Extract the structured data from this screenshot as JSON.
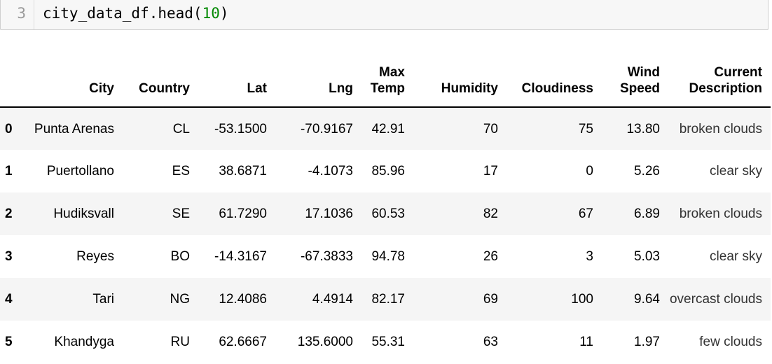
{
  "code_cell": {
    "line_number": "3",
    "code_prefix": "city_data_df.head(",
    "code_number": "10",
    "code_suffix": ")"
  },
  "table": {
    "columns": [
      "",
      "City",
      "Country",
      "Lat",
      "Lng",
      "Max Temp",
      "Humidity",
      "Cloudiness",
      "Wind Speed",
      "Current Description"
    ],
    "rows": [
      {
        "index": "0",
        "city": "Punta Arenas",
        "country": "CL",
        "lat": "-53.1500",
        "lng": "-70.9167",
        "max_temp": "42.91",
        "humidity": "70",
        "cloudiness": "75",
        "wind_speed": "13.80",
        "description": "broken clouds"
      },
      {
        "index": "1",
        "city": "Puertollano",
        "country": "ES",
        "lat": "38.6871",
        "lng": "-4.1073",
        "max_temp": "85.96",
        "humidity": "17",
        "cloudiness": "0",
        "wind_speed": "5.26",
        "description": "clear sky"
      },
      {
        "index": "2",
        "city": "Hudiksvall",
        "country": "SE",
        "lat": "61.7290",
        "lng": "17.1036",
        "max_temp": "60.53",
        "humidity": "82",
        "cloudiness": "67",
        "wind_speed": "6.89",
        "description": "broken clouds"
      },
      {
        "index": "3",
        "city": "Reyes",
        "country": "BO",
        "lat": "-14.3167",
        "lng": "-67.3833",
        "max_temp": "94.78",
        "humidity": "26",
        "cloudiness": "3",
        "wind_speed": "5.03",
        "description": "clear sky"
      },
      {
        "index": "4",
        "city": "Tari",
        "country": "NG",
        "lat": "12.4086",
        "lng": "4.4914",
        "max_temp": "82.17",
        "humidity": "69",
        "cloudiness": "100",
        "wind_speed": "9.64",
        "description": "overcast clouds"
      },
      {
        "index": "5",
        "city": "Khandyga",
        "country": "RU",
        "lat": "62.6667",
        "lng": "135.6000",
        "max_temp": "55.31",
        "humidity": "63",
        "cloudiness": "11",
        "wind_speed": "1.97",
        "description": "few clouds"
      }
    ]
  }
}
